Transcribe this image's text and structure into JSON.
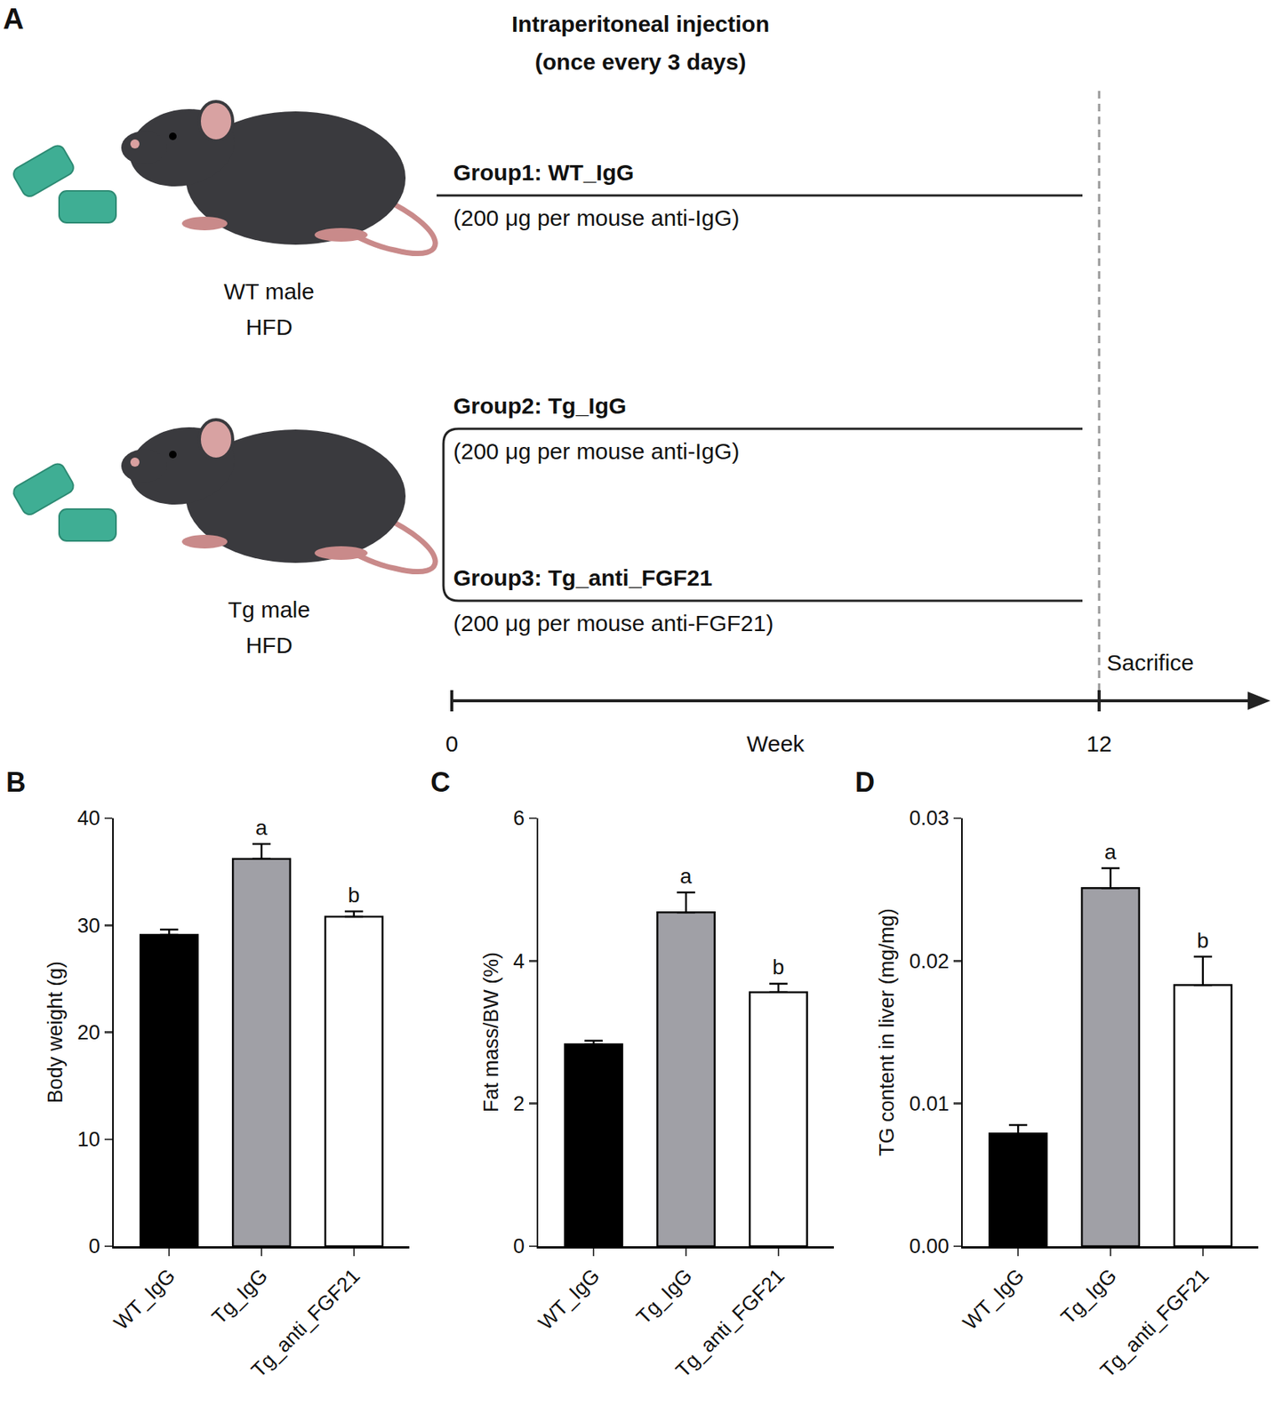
{
  "diagram": {
    "panel": "A",
    "title": [
      "Intraperitoneal injection",
      "(once every 3 days)"
    ],
    "mice": [
      {
        "label": [
          "WT male",
          "HFD"
        ]
      },
      {
        "label": [
          "Tg male",
          "HFD"
        ]
      }
    ],
    "groups": [
      {
        "name": "Group1: WT_IgG",
        "treatment": "(200 μg per mouse anti-IgG)"
      },
      {
        "name": "Group2: Tg_IgG",
        "treatment": "(200 μg per mouse anti-IgG)"
      },
      {
        "name": "Group3: Tg_anti_FGF21",
        "treatment": "(200 μg per mouse anti-FGF21)"
      }
    ],
    "timeline": {
      "start": "0",
      "label": "Week",
      "end": "12",
      "event": "Sacrifice"
    }
  },
  "chart_data": [
    {
      "type": "bar",
      "panel": "B",
      "y_label": "Body weight (g)",
      "categories": [
        "WT_IgG",
        "Tg_IgG",
        "Tg_anti_FGF21"
      ],
      "values": [
        29.1,
        36.2,
        30.8
      ],
      "errors": [
        0.5,
        1.4,
        0.5
      ],
      "colors": [
        "#000000",
        "#a0a0a6",
        "#ffffff"
      ],
      "annotations": [
        {
          "category": "Tg_IgG",
          "text": "a"
        },
        {
          "category": "Tg_anti_FGF21",
          "text": "b"
        }
      ],
      "ylim": [
        0,
        40
      ],
      "yticks": [
        0,
        10,
        20,
        30,
        40
      ],
      "grid": false
    },
    {
      "type": "bar",
      "panel": "C",
      "y_label": "Fat mass/BW (%)",
      "categories": [
        "WT_IgG",
        "Tg_IgG",
        "Tg_anti_FGF21"
      ],
      "values": [
        2.83,
        4.68,
        3.56
      ],
      "errors": [
        0.05,
        0.28,
        0.12
      ],
      "colors": [
        "#000000",
        "#a0a0a6",
        "#ffffff"
      ],
      "annotations": [
        {
          "category": "Tg_IgG",
          "text": "a"
        },
        {
          "category": "Tg_anti_FGF21",
          "text": "b"
        }
      ],
      "ylim": [
        0,
        6
      ],
      "yticks": [
        0,
        2,
        4,
        6
      ],
      "grid": false
    },
    {
      "type": "bar",
      "panel": "D",
      "y_label": "TG content in liver (mg/mg)",
      "categories": [
        "WT_IgG",
        "Tg_IgG",
        "Tg_anti_FGF21"
      ],
      "values": [
        0.0079,
        0.0251,
        0.0183
      ],
      "errors": [
        0.0006,
        0.0014,
        0.002
      ],
      "colors": [
        "#000000",
        "#a0a0a6",
        "#ffffff"
      ],
      "annotations": [
        {
          "category": "Tg_IgG",
          "text": "a"
        },
        {
          "category": "Tg_anti_FGF21",
          "text": "b"
        }
      ],
      "ylim": [
        0,
        0.03
      ],
      "yticks": [
        {
          "value": 0,
          "label": "0.00"
        },
        0.01,
        0.02,
        0.03
      ],
      "grid": false
    }
  ]
}
